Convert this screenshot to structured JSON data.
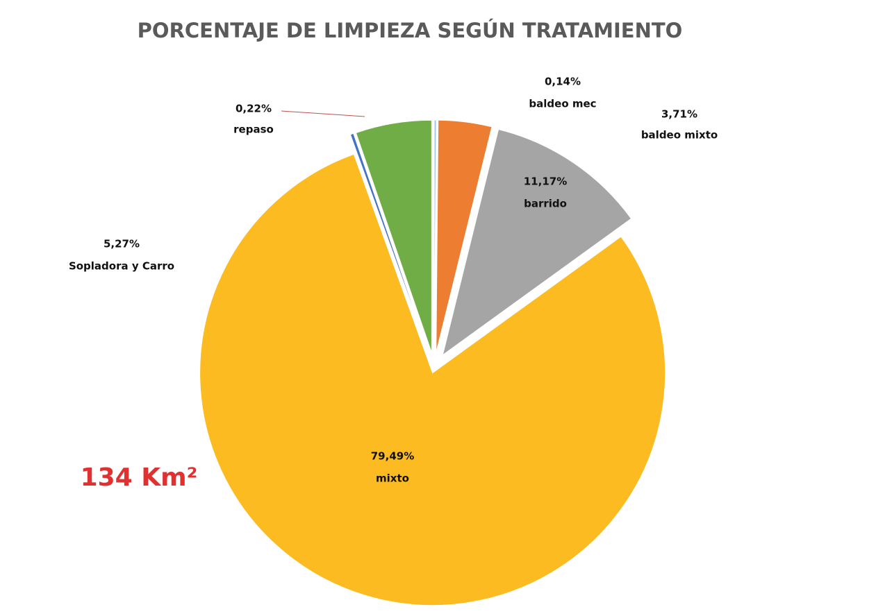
{
  "chart_data": {
    "type": "pie",
    "title": "PORCENTAJE DE LIMPIEZA SEGÚN TRATAMIENTO",
    "categories": [
      "baldeo mec",
      "baldeo mixto",
      "barrido",
      "mixto",
      "repaso",
      "Sopladora y Carro"
    ],
    "values": [
      0.14,
      3.71,
      11.17,
      79.49,
      0.22,
      5.27
    ],
    "value_labels": [
      "0,14%",
      "3,71%",
      "11,17%",
      "79,49%",
      "0,22%",
      "5,27%"
    ],
    "colors": [
      "#9dc3e6",
      "#ed7d31",
      "#a5a5a5",
      "#fbbb21",
      "#4472c4",
      "#70ad47"
    ],
    "annotation": "134 Km²"
  }
}
